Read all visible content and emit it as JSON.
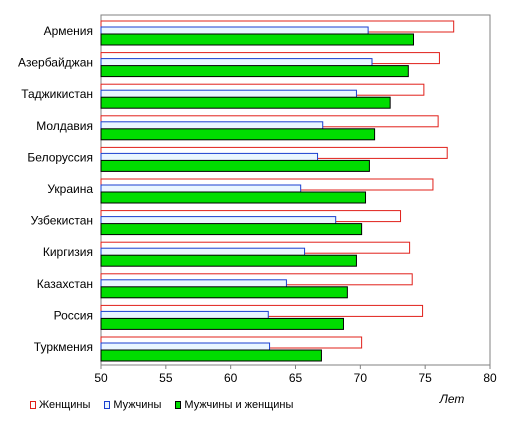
{
  "chart_data": {
    "type": "bar",
    "orientation": "horizontal",
    "categories": [
      "Армения",
      "Азербайджан",
      "Таджикистан",
      "Молдавия",
      "Белоруссия",
      "Украина",
      "Узбекистан",
      "Киргизия",
      "Казахстан",
      "Россия",
      "Туркмения"
    ],
    "series": [
      {
        "name": "Женщины",
        "color": "#ffffff",
        "border": "#e0201a",
        "values": [
          77.2,
          76.1,
          74.9,
          76.0,
          76.7,
          75.6,
          73.1,
          73.8,
          74.0,
          74.8,
          70.1
        ]
      },
      {
        "name": "Мужчины",
        "color": "#eaf6ff",
        "border": "#1a3fd0",
        "values": [
          70.6,
          70.9,
          69.7,
          67.1,
          66.7,
          65.4,
          68.1,
          65.7,
          64.3,
          62.9,
          63.0
        ]
      },
      {
        "name": "Мужчины и женщины",
        "color": "#00dd00",
        "border": "#000000",
        "values": [
          74.1,
          73.7,
          72.3,
          71.1,
          70.7,
          70.4,
          70.1,
          69.7,
          69.0,
          68.7,
          67.0
        ]
      }
    ],
    "xlim": [
      50,
      80
    ],
    "xticks": [
      "50",
      "55",
      "60",
      "65",
      "70",
      "75",
      "80"
    ],
    "xlabel": "Лет",
    "grid": false,
    "legend_position": "bottom"
  }
}
